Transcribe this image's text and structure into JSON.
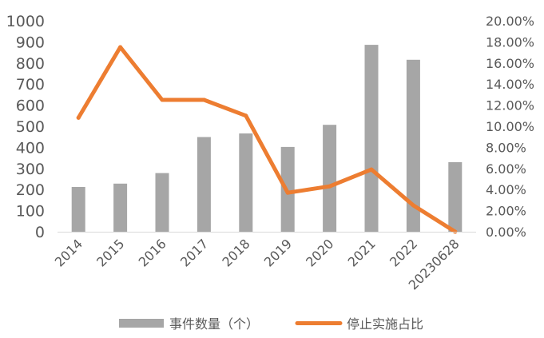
{
  "chart_data": {
    "type": "bar+line",
    "categories": [
      "2014",
      "2015",
      "2016",
      "2017",
      "2018",
      "2019",
      "2020",
      "2021",
      "2022",
      "20230628"
    ],
    "series": [
      {
        "name": "事件数量（个）",
        "type": "bar",
        "axis": "left",
        "color": "#a6a6a6",
        "values": [
          212,
          228,
          278,
          449,
          466,
          402,
          507,
          886,
          815,
          330
        ]
      },
      {
        "name": "停止实施占比",
        "type": "line",
        "axis": "right",
        "color": "#ed7d31",
        "values": [
          0.108,
          0.175,
          0.125,
          0.125,
          0.11,
          0.037,
          0.043,
          0.059,
          0.025,
          0.0
        ]
      }
    ],
    "y_left": {
      "ylim": [
        0,
        1000
      ],
      "ticks": [
        "0",
        "100",
        "200",
        "300",
        "400",
        "500",
        "600",
        "700",
        "800",
        "900",
        "1000"
      ]
    },
    "y_right": {
      "ylim": [
        0,
        0.2
      ],
      "ticks": [
        "0.00%",
        "2.00%",
        "4.00%",
        "6.00%",
        "8.00%",
        "10.00%",
        "12.00%",
        "14.00%",
        "16.00%",
        "18.00%",
        "20.00%"
      ]
    },
    "title": "",
    "xlabel": "",
    "ylabel": "",
    "grid": false,
    "legend_position": "bottom"
  }
}
